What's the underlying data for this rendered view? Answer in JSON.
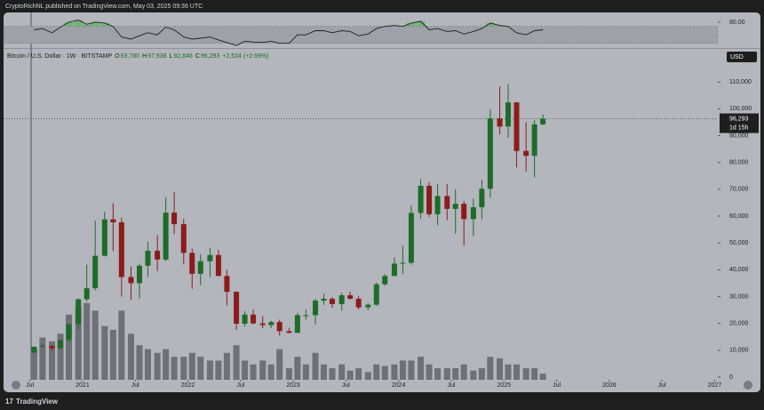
{
  "header": "CryptoRichNL published on TradingView.com, May 03, 2025 09:36 UTC",
  "footer": "TradingView",
  "chart_data": {
    "type": "candlestick",
    "symbol": "Bitcoin / U.S. Dollar · 1W · BITSTAMP",
    "legend_items": [
      {
        "label": "O",
        "value": "93,780"
      },
      {
        "label": "H",
        "value": "97,938"
      },
      {
        "label": "L",
        "value": "92,846"
      },
      {
        "label": "C",
        "value": "96,293"
      }
    ],
    "change": "+2,524 (+2.69%)",
    "currency": "USD",
    "last_price": {
      "value": 96293,
      "label": "96,293"
    },
    "countdown": "1d 15h",
    "up_color": "#1e6b2a",
    "down_color": "#8c1c1c",
    "volume_color": "#6e7078",
    "rsi_color": "#1e1e1e",
    "x": [
      2020.54,
      2020.62,
      2020.71,
      2020.79,
      2020.87,
      2020.96,
      2021.04,
      2021.12,
      2021.21,
      2021.29,
      2021.37,
      2021.46,
      2021.54,
      2021.62,
      2021.71,
      2021.79,
      2021.87,
      2021.96,
      2022.04,
      2022.12,
      2022.21,
      2022.29,
      2022.37,
      2022.46,
      2022.54,
      2022.62,
      2022.71,
      2022.79,
      2022.87,
      2022.96,
      2023.04,
      2023.12,
      2023.21,
      2023.29,
      2023.37,
      2023.46,
      2023.54,
      2023.62,
      2023.71,
      2023.79,
      2023.87,
      2023.96,
      2024.04,
      2024.12,
      2024.21,
      2024.29,
      2024.37,
      2024.46,
      2024.54,
      2024.62,
      2024.71,
      2024.79,
      2024.87,
      2024.96,
      2025.04,
      2025.12,
      2025.21,
      2025.29,
      2025.37
    ],
    "open": [
      9100,
      11300,
      11650,
      10750,
      13800,
      19700,
      29000,
      33100,
      45200,
      58800,
      57700,
      37300,
      35000,
      41500,
      47100,
      43800,
      61300,
      57000,
      46300,
      38500,
      43200,
      45500,
      37700,
      31800,
      19900,
      23300,
      20000,
      19400,
      20500,
      17100,
      16500,
      23100,
      23100,
      28500,
      29200,
      27200,
      30500,
      29200,
      26000,
      27000,
      34600,
      37700,
      42300,
      42600,
      61200,
      71300,
      60700,
      67500,
      62700,
      64600,
      58900,
      63300,
      70200,
      96400,
      93400,
      102400,
      84300,
      82500,
      94200
    ],
    "high": [
      11400,
      12400,
      12000,
      14000,
      19800,
      29300,
      41900,
      58300,
      61700,
      64800,
      59500,
      41300,
      42300,
      50500,
      52900,
      67000,
      69000,
      59000,
      47900,
      45800,
      48200,
      47400,
      40000,
      31900,
      24600,
      25200,
      22700,
      21000,
      21400,
      18400,
      23900,
      25200,
      29200,
      31000,
      29800,
      31400,
      31800,
      30200,
      27500,
      35200,
      38400,
      44700,
      48900,
      64000,
      73800,
      72700,
      71900,
      72000,
      70000,
      65600,
      66500,
      73600,
      99800,
      108300,
      109300,
      102500,
      95000,
      95700,
      97900
    ],
    "low": [
      8900,
      11100,
      9900,
      10400,
      13200,
      17600,
      28100,
      32300,
      45000,
      47000,
      30000,
      28800,
      29300,
      37300,
      39600,
      43300,
      53300,
      42000,
      32900,
      34300,
      37200,
      37600,
      26700,
      17600,
      18800,
      19600,
      18200,
      18200,
      15500,
      16300,
      16500,
      21400,
      19600,
      26900,
      25800,
      24800,
      28900,
      25200,
      24900,
      26500,
      34100,
      37600,
      38500,
      41900,
      59000,
      59600,
      56600,
      58400,
      53500,
      49000,
      52600,
      58900,
      66800,
      90500,
      89200,
      78200,
      76600,
      74500,
      94000
    ],
    "close": [
      11300,
      11650,
      10750,
      13800,
      19700,
      29000,
      33100,
      45200,
      58800,
      57700,
      37300,
      35000,
      41500,
      47100,
      43800,
      61300,
      57000,
      46300,
      38500,
      43200,
      45500,
      37700,
      31800,
      19900,
      23300,
      20000,
      19400,
      20500,
      17100,
      16500,
      23100,
      23100,
      28500,
      29200,
      27200,
      30500,
      29200,
      26000,
      27000,
      34600,
      37700,
      42300,
      42600,
      61200,
      71300,
      60700,
      67500,
      62700,
      64600,
      58900,
      63300,
      70200,
      96400,
      93400,
      102400,
      84300,
      82500,
      94200,
      96300
    ],
    "volume": [
      40,
      55,
      50,
      60,
      85,
      95,
      100,
      90,
      70,
      65,
      90,
      60,
      45,
      40,
      35,
      40,
      30,
      30,
      35,
      30,
      25,
      25,
      35,
      45,
      25,
      20,
      25,
      20,
      40,
      15,
      30,
      20,
      35,
      20,
      15,
      20,
      12,
      15,
      10,
      20,
      18,
      20,
      25,
      25,
      30,
      20,
      15,
      15,
      15,
      20,
      12,
      15,
      30,
      28,
      20,
      20,
      15,
      15,
      8
    ],
    "volume_ylim": [
      0,
      430
    ],
    "rsi": [
      62,
      65,
      55,
      68,
      80,
      85,
      75,
      80,
      78,
      70,
      45,
      40,
      48,
      55,
      50,
      68,
      62,
      45,
      40,
      42,
      45,
      38,
      32,
      25,
      35,
      33,
      32,
      35,
      30,
      30,
      50,
      50,
      60,
      60,
      55,
      60,
      58,
      48,
      52,
      65,
      70,
      72,
      70,
      78,
      82,
      62,
      65,
      58,
      60,
      52,
      58,
      65,
      78,
      72,
      70,
      55,
      50,
      60,
      62
    ],
    "rsi_ylim": [
      21,
      103
    ],
    "rsi_band": [
      30,
      70
    ],
    "rsi_yticks": [
      {
        "value": 80,
        "label": "80.00"
      }
    ],
    "xlim": [
      2020.25,
      2027.03
    ],
    "xticks": [
      {
        "value": 2020.5,
        "label": "Jul"
      },
      2021,
      {
        "value": 2021.5,
        "label": "Jul"
      },
      2022,
      {
        "value": 2022.5,
        "label": "Jul"
      },
      2023,
      {
        "value": 2023.5,
        "label": "Jul"
      },
      2024,
      {
        "value": 2024.5,
        "label": "Jul"
      },
      2025,
      {
        "value": 2025.5,
        "label": "Jul"
      },
      2026,
      {
        "value": 2026.5,
        "label": "Jul"
      },
      2027
    ],
    "ylim": [
      -1000,
      122000
    ],
    "yticks": [
      0,
      {
        "value": 10000,
        "label": "10,000"
      },
      {
        "value": 20000,
        "label": "20,000"
      },
      {
        "value": 30000,
        "label": "30,000"
      },
      {
        "value": 40000,
        "label": "40,000"
      },
      {
        "value": 50000,
        "label": "50,000"
      },
      {
        "value": 60000,
        "label": "60,000"
      },
      {
        "value": 70000,
        "label": "70,000"
      },
      {
        "value": 80000,
        "label": "80,000"
      },
      {
        "value": 90000,
        "label": "90,000"
      },
      {
        "value": 100000,
        "label": "100,000"
      },
      {
        "value": 110000,
        "label": "110,000"
      }
    ]
  }
}
